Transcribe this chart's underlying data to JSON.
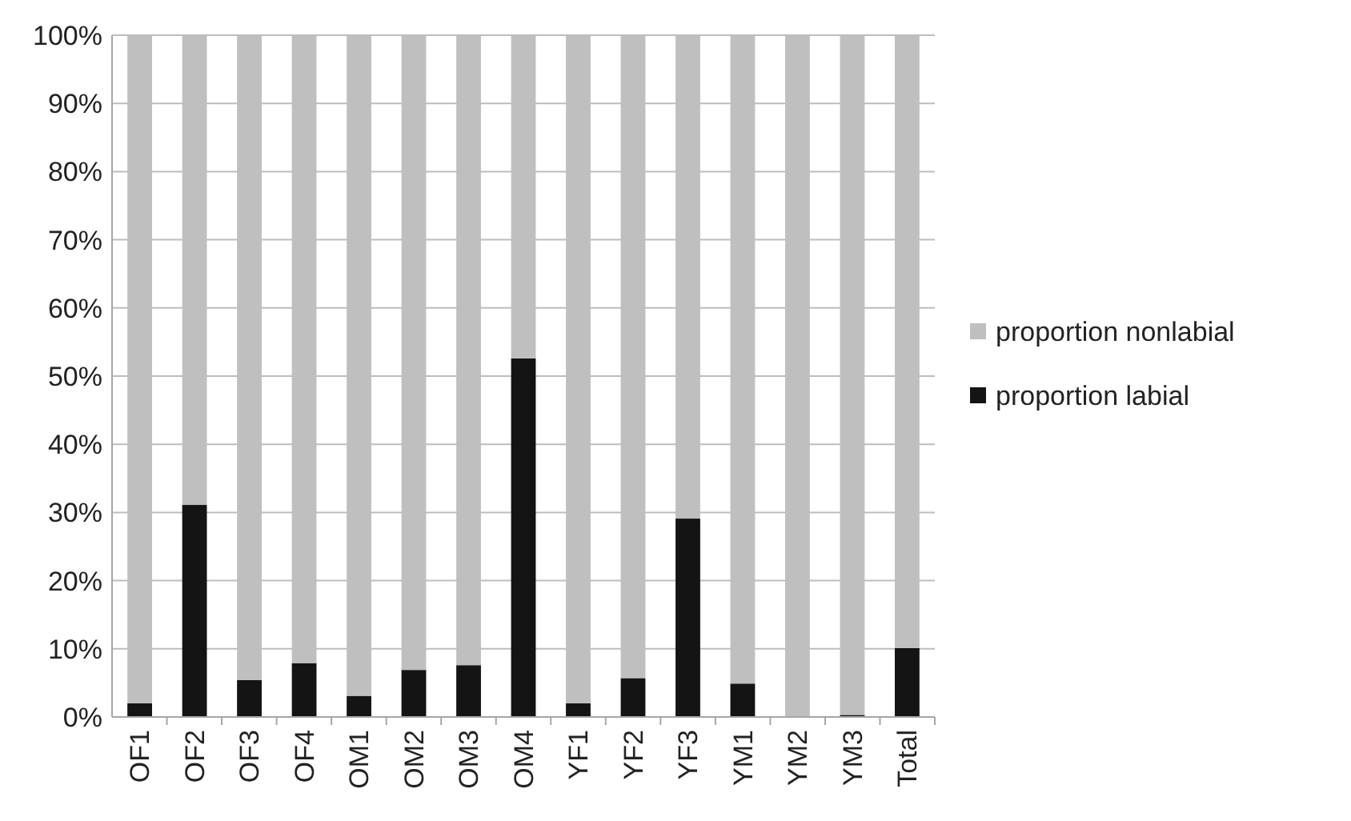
{
  "chart_data": {
    "type": "bar",
    "stacked": true,
    "categories": [
      "OF1",
      "OF2",
      "OF3",
      "OF4",
      "OM1",
      "OM2",
      "OM3",
      "OM4",
      "YF1",
      "YF2",
      "YF3",
      "YM1",
      "YM2",
      "YM3",
      "Total"
    ],
    "series": [
      {
        "name": "proportion labial",
        "color": "#141414",
        "values": [
          2.0,
          31.1,
          5.4,
          7.9,
          3.1,
          6.9,
          7.6,
          52.6,
          2.0,
          5.7,
          29.1,
          4.9,
          0,
          0.3,
          10.1
        ]
      },
      {
        "name": "proportion nonlabial",
        "color": "#bfbfbf",
        "values": [
          98.0,
          68.9,
          94.6,
          92.1,
          96.9,
          93.1,
          92.4,
          47.4,
          98.0,
          94.3,
          70.9,
          95.1,
          100,
          99.7,
          89.9
        ]
      }
    ],
    "ylim": [
      0,
      100
    ],
    "yticks": [
      {
        "value": 0,
        "label": "0%"
      },
      {
        "value": 10,
        "label": "10%"
      },
      {
        "value": 20,
        "label": "20%"
      },
      {
        "value": 30,
        "label": "30%"
      },
      {
        "value": 40,
        "label": "40%"
      },
      {
        "value": 50,
        "label": "50%"
      },
      {
        "value": 60,
        "label": "60%"
      },
      {
        "value": 70,
        "label": "70%"
      },
      {
        "value": 80,
        "label": "80%"
      },
      {
        "value": 90,
        "label": "90%"
      },
      {
        "value": 100,
        "label": "100%"
      }
    ],
    "grid": "y",
    "legend": "right"
  }
}
